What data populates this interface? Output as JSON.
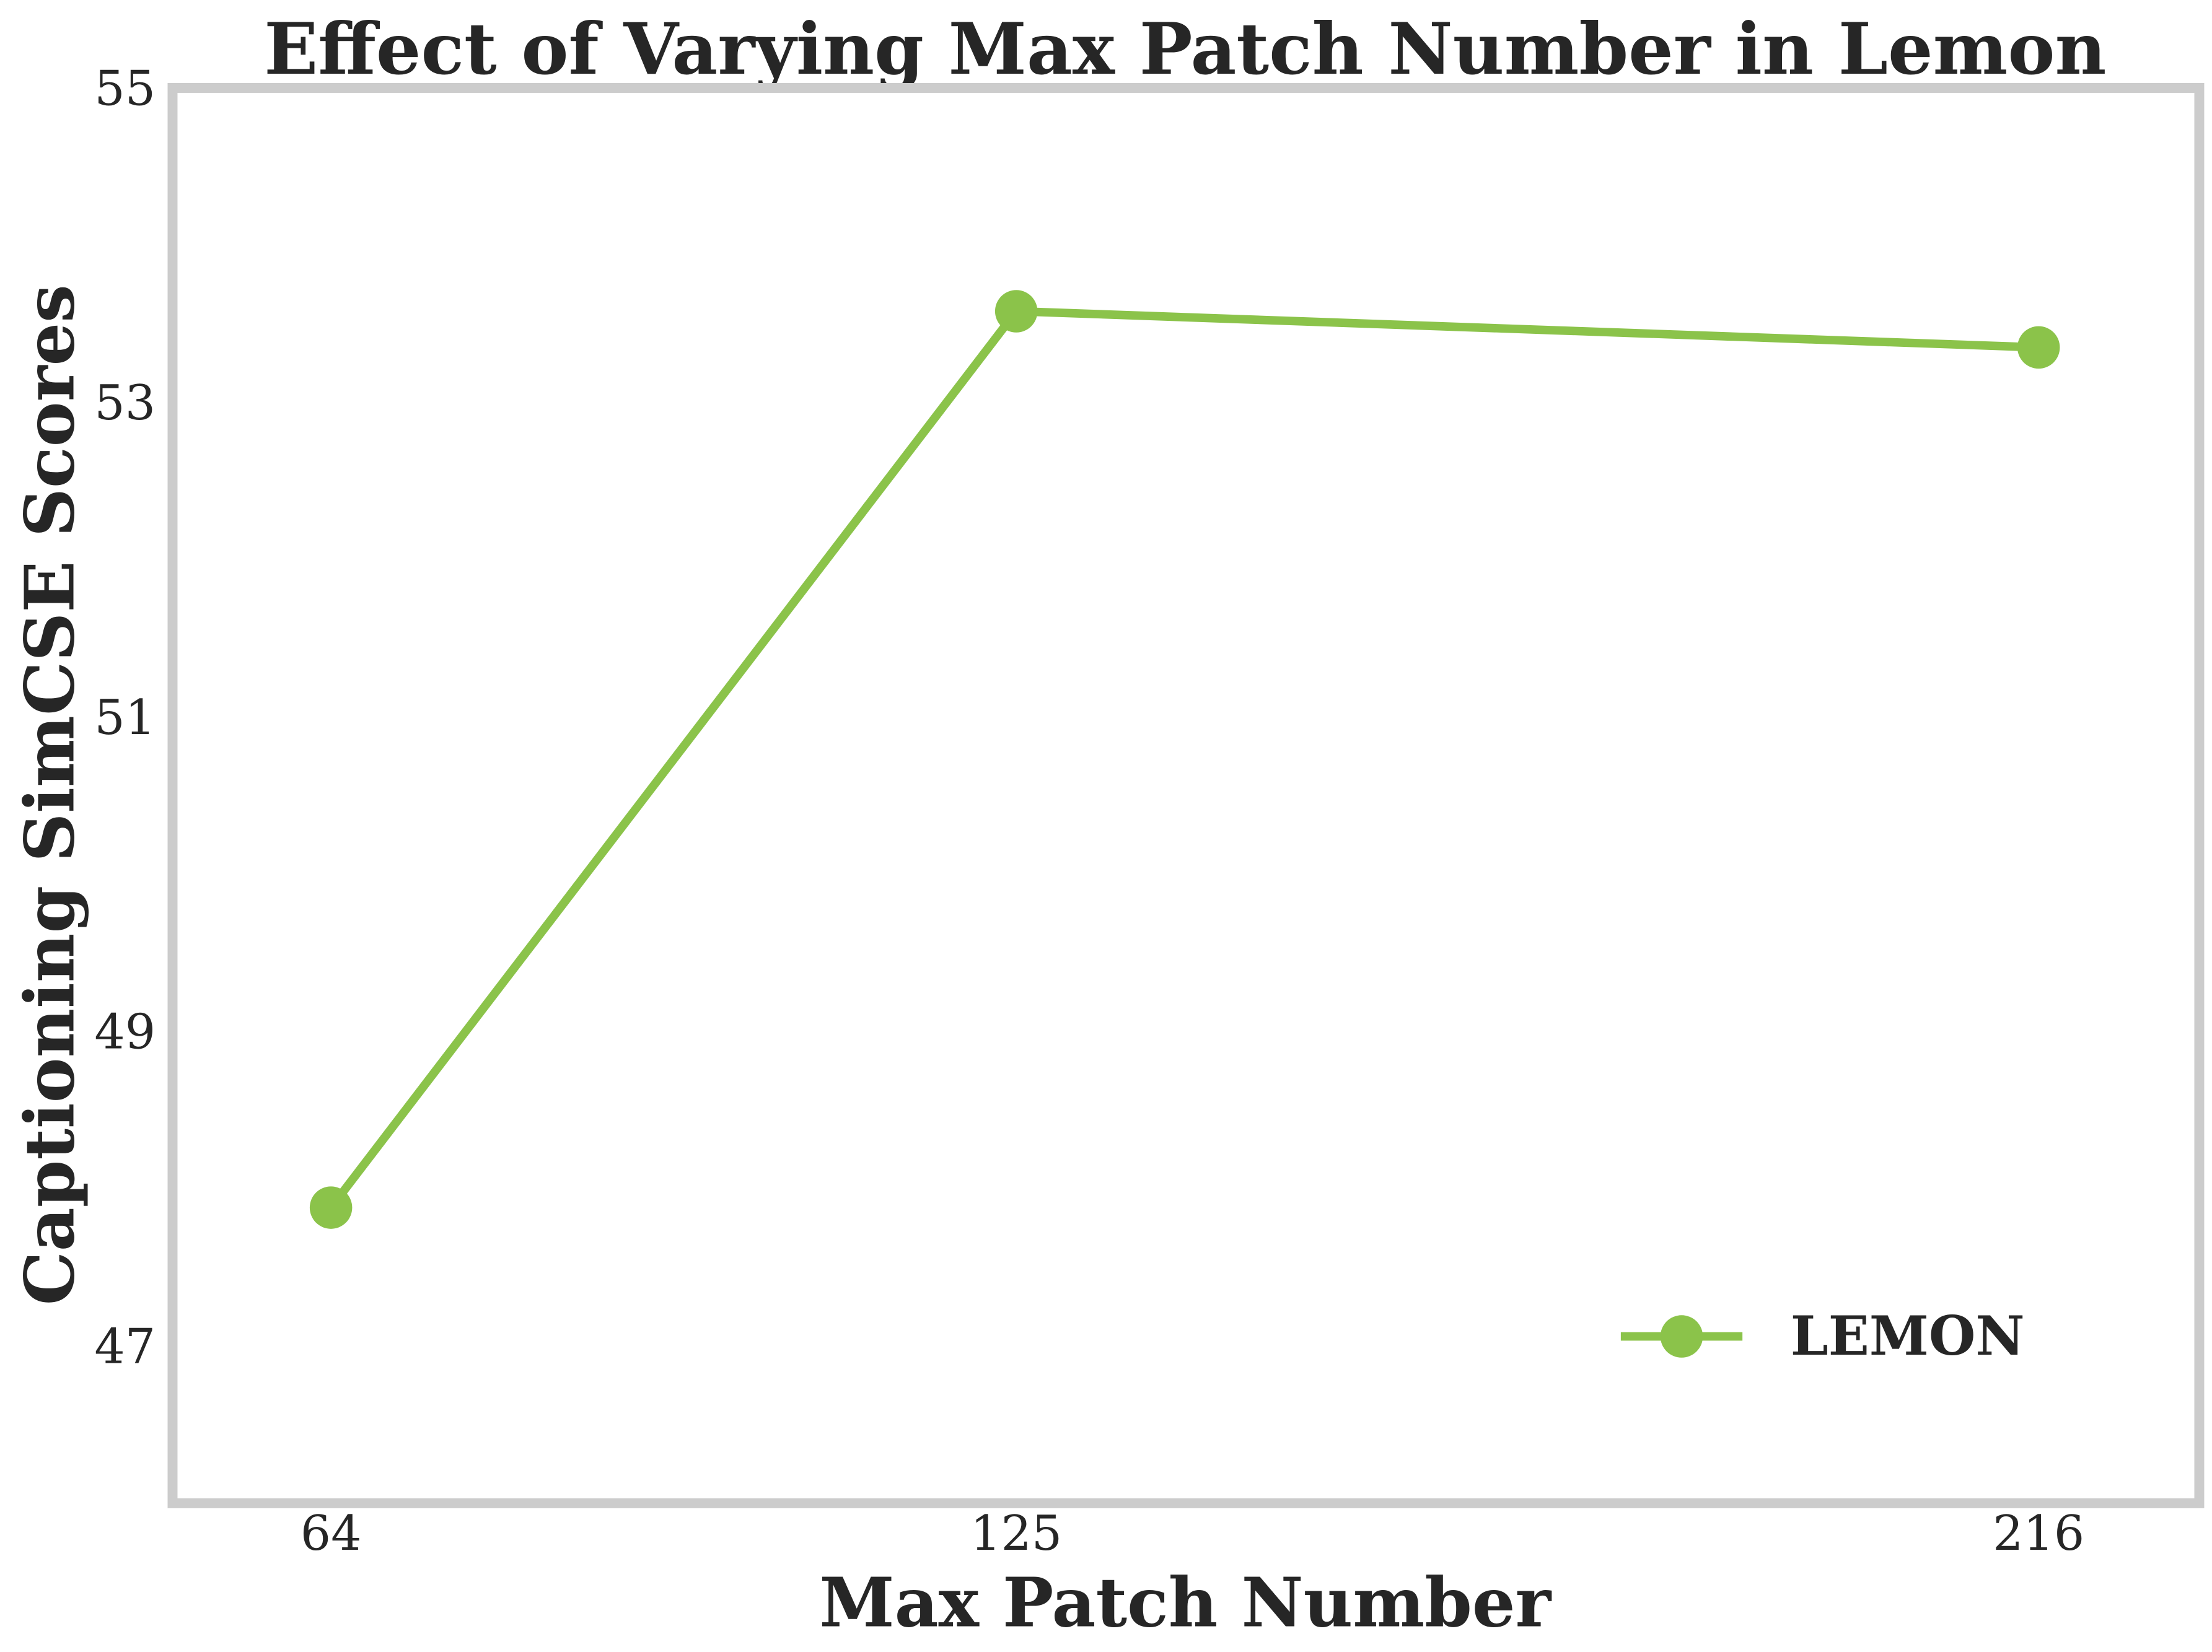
{
  "chart_data": {
    "type": "line",
    "title": "Effect of Varying Max Patch Number in Lemon",
    "xlabel": "Max Patch Number",
    "ylabel": "Captioning SimCSE Scores",
    "x": [
      64,
      125,
      216
    ],
    "xticks": [
      "64",
      "125",
      "216"
    ],
    "yticks": [
      "47",
      "49",
      "51",
      "53",
      "55"
    ],
    "ytick_values": [
      47,
      49,
      51,
      53,
      55
    ],
    "xlim": [
      49.9,
      230.3
    ],
    "ylim": [
      46,
      55
    ],
    "grid": false,
    "legend_position": "lower-right",
    "series": [
      {
        "name": "LEMON",
        "values": [
          47.88,
          53.58,
          53.35
        ],
        "color": "#8bc34a",
        "marker": "circle"
      }
    ]
  }
}
